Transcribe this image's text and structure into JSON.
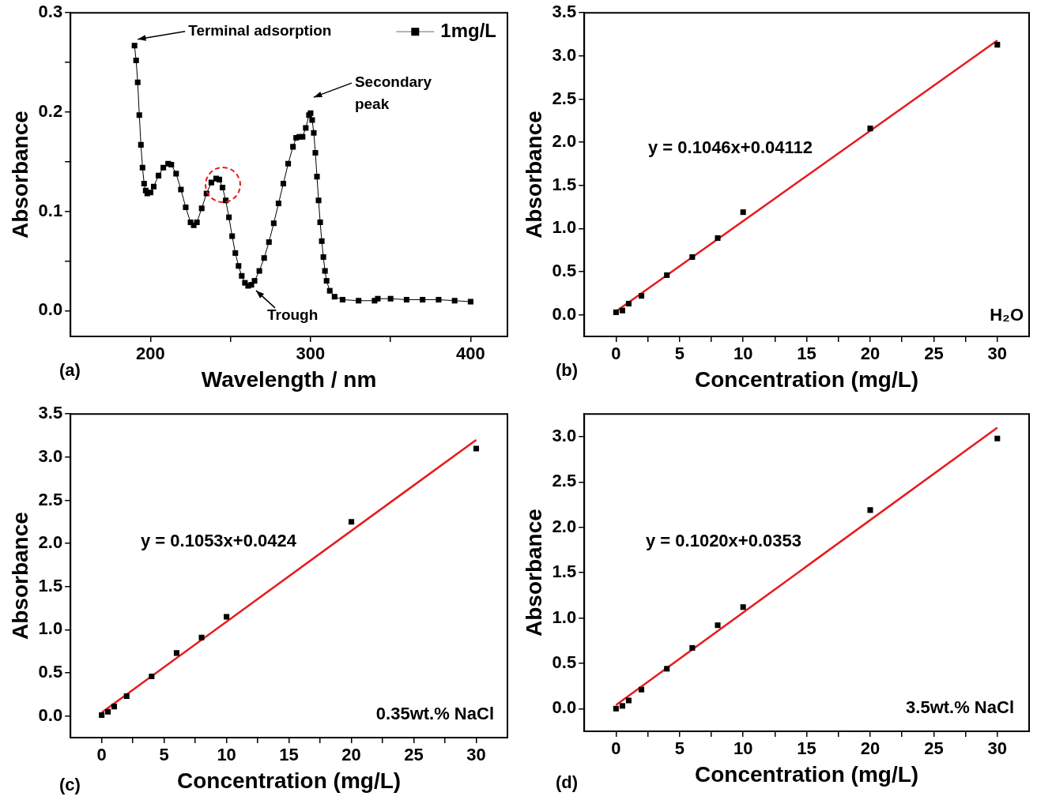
{
  "chart_data": [
    {
      "type": "line",
      "xlabel": "Wavelength / nm",
      "ylabel": "Absorbance",
      "xlim": [
        150,
        423
      ],
      "ylim": [
        -0.026,
        0.3
      ],
      "xticks": [
        200,
        {
          "value": 250,
          "label": null
        },
        300,
        {
          "value": 350,
          "label": null
        },
        400
      ],
      "yticks": [
        {
          "value": 0,
          "label": "0.0"
        },
        {
          "value": 0.05,
          "label": null
        },
        0.1,
        {
          "value": 0.15,
          "label": null
        },
        0.2,
        {
          "value": 0.25,
          "label": null
        },
        0.3
      ],
      "grid": false,
      "legend": "top right",
      "marker": "square",
      "series": [
        {
          "name": "1mg/L",
          "color": "#000000",
          "x": [
            190,
            191,
            192,
            193,
            194,
            195,
            196,
            197,
            198,
            200,
            202,
            205,
            208,
            211,
            213,
            216,
            219,
            222,
            225,
            227,
            229,
            232,
            235,
            238,
            241,
            243,
            245,
            247,
            249,
            251,
            253,
            255,
            257,
            259,
            261,
            263,
            265,
            268,
            271,
            274,
            277,
            280,
            283,
            286,
            289,
            291,
            293,
            295,
            297,
            299,
            300,
            301,
            302,
            303,
            304,
            305,
            306,
            307,
            308,
            309,
            310,
            312,
            315,
            320,
            330,
            340,
            342,
            350,
            360,
            370,
            380,
            390,
            400
          ],
          "values": [
            0.267,
            0.252,
            0.23,
            0.197,
            0.167,
            0.144,
            0.128,
            0.121,
            0.118,
            0.119,
            0.125,
            0.136,
            0.144,
            0.148,
            0.147,
            0.138,
            0.122,
            0.104,
            0.089,
            0.086,
            0.089,
            0.103,
            0.118,
            0.129,
            0.133,
            0.132,
            0.124,
            0.111,
            0.094,
            0.075,
            0.058,
            0.045,
            0.035,
            0.028,
            0.025,
            0.026,
            0.03,
            0.04,
            0.053,
            0.069,
            0.088,
            0.108,
            0.128,
            0.148,
            0.165,
            0.174,
            0.175,
            0.175,
            0.184,
            0.197,
            0.199,
            0.192,
            0.179,
            0.159,
            0.135,
            0.111,
            0.089,
            0.07,
            0.054,
            0.04,
            0.03,
            0.02,
            0.014,
            0.011,
            0.01,
            0.01,
            0.012,
            0.012,
            0.011,
            0.011,
            0.011,
            0.01,
            0.009
          ]
        }
      ],
      "annotations": [
        "(a)",
        {
          "text": "Terminal adsorption",
          "x": 190,
          "y": 0.267
        },
        {
          "text": "Secondary peak",
          "x": 300,
          "y": 0.199
        },
        {
          "text": "Trough",
          "x": 261,
          "y": 0.025
        }
      ]
    },
    {
      "type": "scatter",
      "xlabel": "Concentration (mg/L)",
      "ylabel": "Absorbance",
      "xlim": [
        -2.5,
        32.5
      ],
      "ylim": [
        -0.25,
        3.5
      ],
      "xticks": [
        0,
        {
          "value": 2.5,
          "label": null
        },
        5,
        {
          "value": 7.5,
          "label": null
        },
        10,
        {
          "value": 12.5,
          "label": null
        },
        15,
        {
          "value": 17.5,
          "label": null
        },
        20,
        {
          "value": 22.5,
          "label": null
        },
        25,
        {
          "value": 27.5,
          "label": null
        },
        30
      ],
      "yticks": [
        {
          "value": 0,
          "label": "0.0"
        },
        0.5,
        {
          "value": 1,
          "label": "1.0"
        },
        1.5,
        {
          "value": 2,
          "label": "2.0"
        },
        2.5,
        {
          "value": 3,
          "label": "3.0"
        },
        3.5
      ],
      "grid": false,
      "marker": "square",
      "series": [
        {
          "color": "#000000",
          "x": [
            0,
            0.5,
            1,
            2,
            4,
            6,
            8,
            10,
            20,
            30
          ],
          "values": [
            0.03,
            0.05,
            0.13,
            0.22,
            0.46,
            0.67,
            0.89,
            1.19,
            2.16,
            3.13
          ]
        },
        {
          "type": "line",
          "marker": "none",
          "color": "#e8191c",
          "x": [
            0,
            30
          ],
          "values": [
            0.04,
            3.18
          ]
        }
      ],
      "annotations": [
        "(b)",
        "y = 0.1046x+0.04112",
        "H₂O"
      ]
    },
    {
      "type": "scatter",
      "xlabel": "Concentration (mg/L)",
      "ylabel": "Absorbance",
      "xlim": [
        -2.5,
        32.5
      ],
      "ylim": [
        -0.25,
        3.5
      ],
      "xticks": [
        0,
        {
          "value": 2.5,
          "label": null
        },
        5,
        {
          "value": 7.5,
          "label": null
        },
        10,
        {
          "value": 12.5,
          "label": null
        },
        15,
        {
          "value": 17.5,
          "label": null
        },
        20,
        {
          "value": 22.5,
          "label": null
        },
        25,
        {
          "value": 27.5,
          "label": null
        },
        30
      ],
      "yticks": [
        {
          "value": 0,
          "label": "0.0"
        },
        0.5,
        {
          "value": 1,
          "label": "1.0"
        },
        1.5,
        {
          "value": 2,
          "label": "2.0"
        },
        2.5,
        {
          "value": 3,
          "label": "3.0"
        },
        3.5
      ],
      "grid": false,
      "marker": "square",
      "series": [
        {
          "color": "#000000",
          "x": [
            0,
            0.5,
            1,
            2,
            4,
            6,
            8,
            10,
            20,
            30
          ],
          "values": [
            0.01,
            0.05,
            0.11,
            0.23,
            0.46,
            0.73,
            0.91,
            1.15,
            2.25,
            3.1
          ]
        },
        {
          "type": "line",
          "marker": "none",
          "color": "#e8191c",
          "x": [
            0,
            30
          ],
          "values": [
            0.04,
            3.2
          ]
        }
      ],
      "annotations": [
        "(c)",
        "y = 0.1053x+0.0424",
        "0.35wt.% NaCl"
      ]
    },
    {
      "type": "scatter",
      "xlabel": "Concentration (mg/L)",
      "ylabel": "Absorbance",
      "xlim": [
        -2.5,
        32.5
      ],
      "ylim": [
        -0.25,
        3.25
      ],
      "xticks": [
        0,
        {
          "value": 2.5,
          "label": null
        },
        5,
        {
          "value": 7.5,
          "label": null
        },
        10,
        {
          "value": 12.5,
          "label": null
        },
        15,
        {
          "value": 17.5,
          "label": null
        },
        20,
        {
          "value": 22.5,
          "label": null
        },
        25,
        {
          "value": 27.5,
          "label": null
        },
        30
      ],
      "yticks": [
        {
          "value": 0,
          "label": "0.0"
        },
        0.5,
        {
          "value": 1,
          "label": "1.0"
        },
        1.5,
        {
          "value": 2,
          "label": "2.0"
        },
        2.5,
        {
          "value": 3,
          "label": "3.0"
        }
      ],
      "grid": false,
      "marker": "square",
      "series": [
        {
          "color": "#000000",
          "x": [
            0,
            0.5,
            1,
            2,
            4,
            6,
            8,
            10,
            20,
            30
          ],
          "values": [
            0,
            0.03,
            0.09,
            0.21,
            0.44,
            0.67,
            0.92,
            1.12,
            2.19,
            2.98
          ]
        },
        {
          "type": "line",
          "marker": "none",
          "color": "#e8191c",
          "x": [
            0,
            30
          ],
          "values": [
            0.04,
            3.1
          ]
        }
      ],
      "annotations": [
        "(d)",
        "y = 0.1020x+0.0353",
        "3.5wt.% NaCl"
      ]
    }
  ]
}
